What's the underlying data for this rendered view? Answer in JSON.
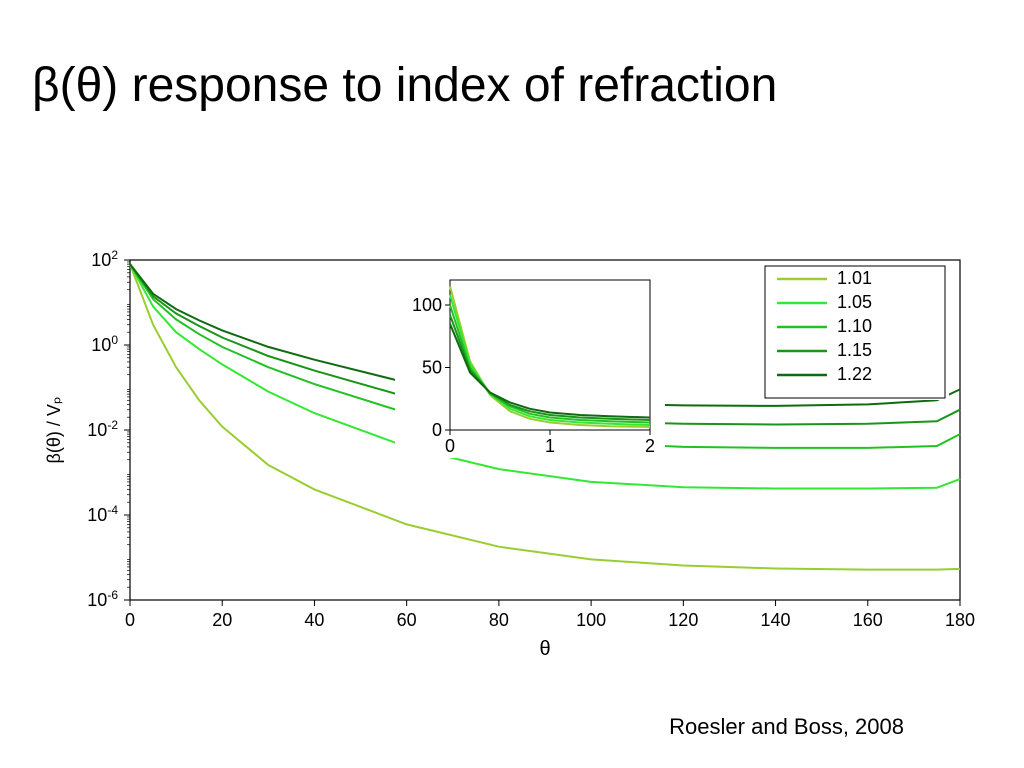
{
  "title": "β(θ) response to index of refraction",
  "citation": "Roesler and Boss, 2008",
  "main_chart": {
    "type": "line",
    "xlabel": "θ",
    "ylabel": "β(θ) / Vₚ",
    "xlim": [
      0,
      180
    ],
    "xtick_step": 20,
    "xticks": [
      0,
      20,
      40,
      60,
      80,
      100,
      120,
      140,
      160,
      180
    ],
    "yscale": "log",
    "ylim_exp": [
      -6,
      2
    ],
    "ytick_exp": [
      -6,
      -4,
      -2,
      0,
      2
    ],
    "line_width": 2,
    "axis_color": "#000000",
    "background_color": "#ffffff",
    "label_fontsize": 20,
    "tick_fontsize": 18,
    "series": [
      {
        "name": "1.01",
        "color": "#9acd32",
        "x": [
          0,
          5,
          10,
          15,
          20,
          30,
          40,
          60,
          80,
          100,
          120,
          140,
          160,
          175,
          180
        ],
        "y": [
          80,
          3,
          0.3,
          0.05,
          0.012,
          0.0015,
          0.0004,
          6e-05,
          1.8e-05,
          9e-06,
          6.5e-06,
          5.5e-06,
          5.2e-06,
          5.2e-06,
          5.4e-06
        ]
      },
      {
        "name": "1.05",
        "color": "#33e833",
        "x": [
          0,
          5,
          10,
          15,
          20,
          30,
          40,
          60,
          80,
          100,
          120,
          140,
          160,
          175,
          180
        ],
        "y": [
          80,
          8,
          2,
          0.8,
          0.35,
          0.08,
          0.025,
          0.004,
          0.0012,
          0.0006,
          0.00045,
          0.00042,
          0.00042,
          0.00044,
          0.0007
        ]
      },
      {
        "name": "1.10",
        "color": "#22c222",
        "x": [
          0,
          5,
          10,
          15,
          20,
          30,
          40,
          60,
          80,
          100,
          120,
          140,
          160,
          175,
          180
        ],
        "y": [
          80,
          12,
          4,
          1.8,
          0.9,
          0.3,
          0.12,
          0.025,
          0.009,
          0.005,
          0.004,
          0.0038,
          0.0038,
          0.0042,
          0.008
        ]
      },
      {
        "name": "1.15",
        "color": "#1a951a",
        "x": [
          0,
          5,
          10,
          15,
          20,
          30,
          40,
          60,
          80,
          100,
          120,
          140,
          160,
          175,
          180
        ],
        "y": [
          80,
          14,
          5.5,
          2.8,
          1.5,
          0.55,
          0.25,
          0.06,
          0.025,
          0.016,
          0.014,
          0.0135,
          0.014,
          0.016,
          0.03
        ]
      },
      {
        "name": "1.22",
        "color": "#0f6b0f",
        "x": [
          0,
          5,
          10,
          15,
          20,
          30,
          40,
          60,
          80,
          100,
          120,
          140,
          160,
          175,
          180
        ],
        "y": [
          80,
          16,
          7,
          3.8,
          2.2,
          0.9,
          0.45,
          0.13,
          0.06,
          0.042,
          0.038,
          0.037,
          0.04,
          0.05,
          0.09
        ]
      }
    ]
  },
  "inset_chart": {
    "type": "line",
    "xlim": [
      0,
      2
    ],
    "xticks": [
      0,
      1,
      2
    ],
    "ylim": [
      0,
      120
    ],
    "yticks": [
      0,
      50,
      100
    ],
    "line_width": 2,
    "axis_color": "#000000",
    "tick_fontsize": 18,
    "series": [
      {
        "name": "1.01",
        "color": "#9acd32",
        "x": [
          0,
          0.2,
          0.4,
          0.6,
          0.8,
          1.0,
          1.3,
          1.6,
          2.0
        ],
        "y": [
          115,
          55,
          28,
          15,
          9,
          6,
          4,
          3,
          2.5
        ]
      },
      {
        "name": "1.05",
        "color": "#33e833",
        "x": [
          0,
          0.2,
          0.4,
          0.6,
          0.8,
          1.0,
          1.3,
          1.6,
          2.0
        ],
        "y": [
          108,
          53,
          29,
          17,
          11,
          8,
          6,
          5,
          4
        ]
      },
      {
        "name": "1.10",
        "color": "#22c222",
        "x": [
          0,
          0.2,
          0.4,
          0.6,
          0.8,
          1.0,
          1.3,
          1.6,
          2.0
        ],
        "y": [
          100,
          50,
          29,
          19,
          13,
          10,
          8,
          7,
          6
        ]
      },
      {
        "name": "1.15",
        "color": "#1a951a",
        "x": [
          0,
          0.2,
          0.4,
          0.6,
          0.8,
          1.0,
          1.3,
          1.6,
          2.0
        ],
        "y": [
          92,
          48,
          30,
          20,
          15,
          12,
          10,
          9,
          8
        ]
      },
      {
        "name": "1.22",
        "color": "#0f6b0f",
        "x": [
          0,
          0.2,
          0.4,
          0.6,
          0.8,
          1.0,
          1.3,
          1.6,
          2.0
        ],
        "y": [
          85,
          46,
          30,
          22,
          17,
          14,
          12,
          11,
          10
        ]
      }
    ]
  },
  "legend": {
    "items": [
      "1.01",
      "1.05",
      "1.10",
      "1.15",
      "1.22"
    ],
    "colors": [
      "#9acd32",
      "#33e833",
      "#22c222",
      "#1a951a",
      "#0f6b0f"
    ],
    "border_color": "#000000",
    "fontsize": 18
  }
}
